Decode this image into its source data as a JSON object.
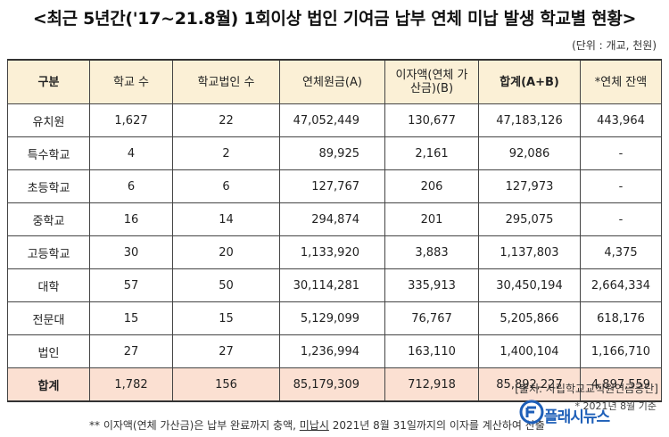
{
  "title": "<최근 5년간('17~21.8월) 1회이상 법인 기여금 납부 연체 미납 발생 학교별 현황>",
  "unit": "(단위 : 개교, 천원)",
  "table": {
    "headers": [
      "구분",
      "학교 수",
      "학교법인 수",
      "연체원금(A)",
      "이자액(연체 가산금)(B)",
      "합계(A+B)",
      "*연체 잔액"
    ],
    "rows": [
      {
        "label": "유치원",
        "schools": "1,627",
        "corps": "22",
        "principal": "47,052,449",
        "interest": "130,677",
        "sum": "47,183,126",
        "balance": "443,964"
      },
      {
        "label": "특수학교",
        "schools": "4",
        "corps": "2",
        "principal": "89,925",
        "interest": "2,161",
        "sum": "92,086",
        "balance": "-"
      },
      {
        "label": "초등학교",
        "schools": "6",
        "corps": "6",
        "principal": "127,767",
        "interest": "206",
        "sum": "127,973",
        "balance": "-"
      },
      {
        "label": "중학교",
        "schools": "16",
        "corps": "14",
        "principal": "294,874",
        "interest": "201",
        "sum": "295,075",
        "balance": "-"
      },
      {
        "label": "고등학교",
        "schools": "30",
        "corps": "20",
        "principal": "1,133,920",
        "interest": "3,883",
        "sum": "1,137,803",
        "balance": "4,375"
      },
      {
        "label": "대학",
        "schools": "57",
        "corps": "50",
        "principal": "30,114,281",
        "interest": "335,913",
        "sum": "30,450,194",
        "balance": "2,664,334"
      },
      {
        "label": "전문대",
        "schools": "15",
        "corps": "15",
        "principal": "5,129,099",
        "interest": "76,767",
        "sum": "5,205,866",
        "balance": "618,176"
      },
      {
        "label": "법인",
        "schools": "27",
        "corps": "27",
        "principal": "1,236,994",
        "interest": "163,110",
        "sum": "1,400,104",
        "balance": "1,166,710"
      }
    ],
    "total": {
      "label": "합계",
      "schools": "1,782",
      "corps": "156",
      "principal": "85,179,309",
      "interest": "712,918",
      "sum": "85,892,227",
      "balance": "4,897,559"
    }
  },
  "source": "[출처: 사립학교교직원연금공단]",
  "base_date": "* 2021년 8월 기준",
  "footnote": {
    "before": "** 이자액(연체 가산금)은 납부 완료까지 충액, ",
    "underlined": "미납시",
    "after": " 2021년 8월 31일까지의 이자를 계산하여 산출"
  },
  "logo": {
    "text": "플래시뉴스",
    "color": "#1e5fb8"
  }
}
